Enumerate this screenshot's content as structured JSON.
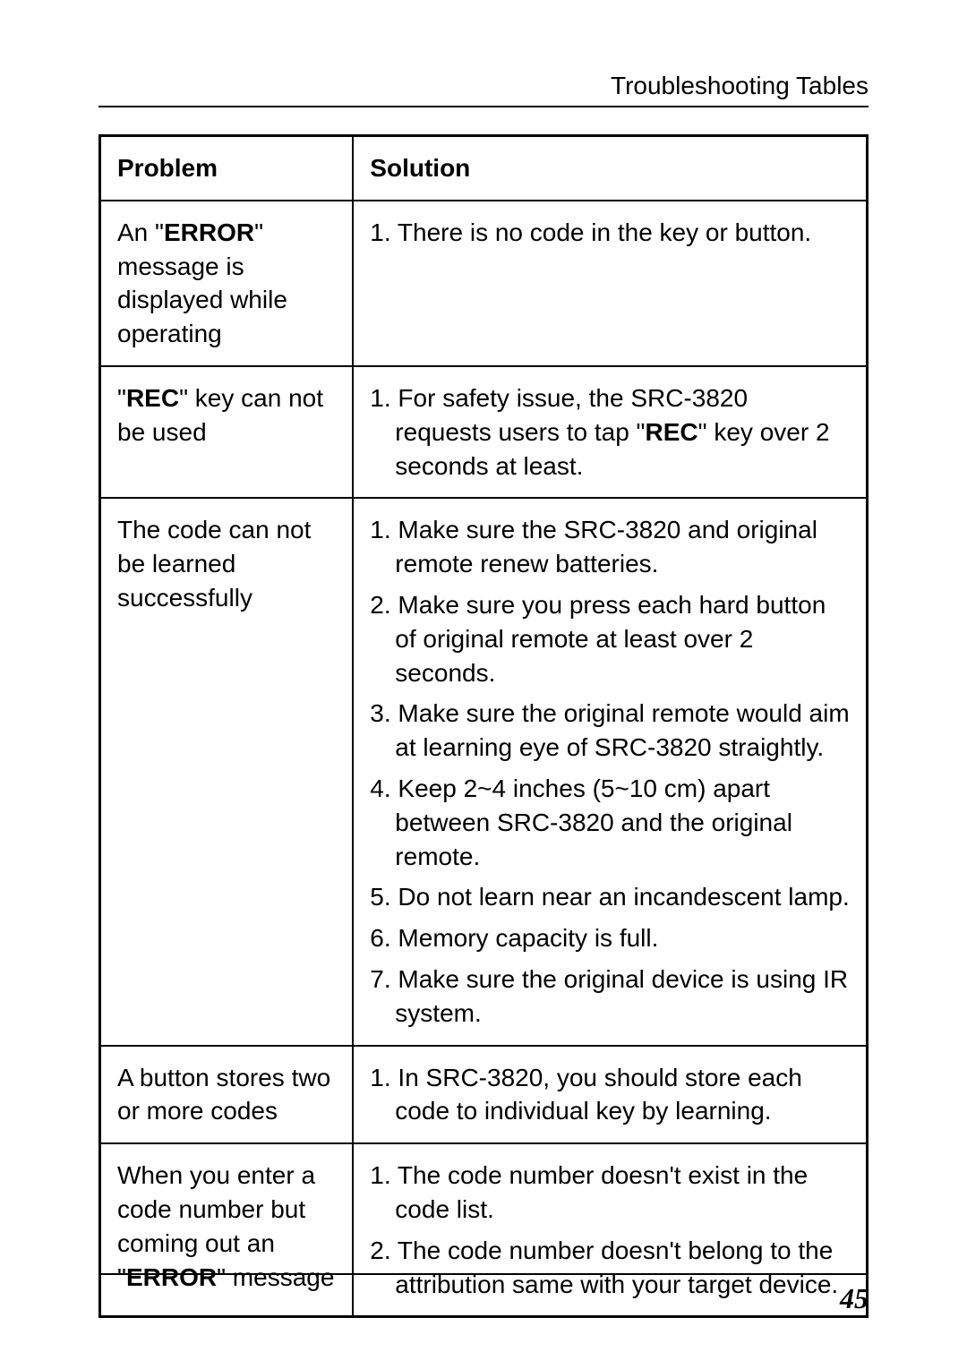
{
  "header": {
    "title": "Troubleshooting Tables"
  },
  "table": {
    "headers": {
      "problem": "Problem",
      "solution": "Solution"
    },
    "rows": [
      {
        "problem_parts": [
          {
            "t": "An \"",
            "b": false
          },
          {
            "t": "ERROR",
            "b": true
          },
          {
            "t": "\" message is displayed while operating",
            "b": false
          }
        ],
        "solutions": [
          [
            {
              "t": "1. There is no code in the key or button.",
              "b": false
            }
          ]
        ]
      },
      {
        "problem_parts": [
          {
            "t": "\"",
            "b": false
          },
          {
            "t": "REC",
            "b": true
          },
          {
            "t": "\" key can not be used",
            "b": false
          }
        ],
        "solutions": [
          [
            {
              "t": "1. For safety issue, the SRC-3820 requests users to tap \"",
              "b": false
            },
            {
              "t": "REC",
              "b": true
            },
            {
              "t": "\" key over 2 seconds at least.",
              "b": false
            }
          ]
        ]
      },
      {
        "problem_parts": [
          {
            "t": "The code can not be learned successfully",
            "b": false
          }
        ],
        "solutions": [
          [
            {
              "t": "1. Make sure the SRC-3820 and original remote renew batteries.",
              "b": false
            }
          ],
          [
            {
              "t": "2. Make sure you press each hard button of original remote at least over 2 seconds.",
              "b": false
            }
          ],
          [
            {
              "t": "3. Make sure the original remote would aim at learning eye of SRC-3820 straightly.",
              "b": false
            }
          ],
          [
            {
              "t": "4. Keep 2~4 inches (5~10 cm) apart between SRC-3820 and the original remote.",
              "b": false
            }
          ],
          [
            {
              "t": "5. Do not learn near an incandescent lamp.",
              "b": false
            }
          ],
          [
            {
              "t": "6. Memory capacity is full.",
              "b": false
            }
          ],
          [
            {
              "t": "7. Make sure the original device is using IR system.",
              "b": false
            }
          ]
        ]
      },
      {
        "problem_parts": [
          {
            "t": "A button stores two or more codes",
            "b": false
          }
        ],
        "solutions": [
          [
            {
              "t": "1. In SRC-3820, you should store each code to individual key by learning.",
              "b": false
            }
          ]
        ]
      },
      {
        "problem_parts": [
          {
            "t": "When you enter a code number but coming out an \"",
            "b": false
          },
          {
            "t": "ERROR",
            "b": true
          },
          {
            "t": "\" message",
            "b": false
          }
        ],
        "solutions": [
          [
            {
              "t": "1. The code number doesn't exist in the code list.",
              "b": false
            }
          ],
          [
            {
              "t": "2. The code number doesn't belong to the attribution same with your target device.",
              "b": false
            }
          ]
        ]
      }
    ]
  },
  "footer": {
    "page_number": "45"
  }
}
